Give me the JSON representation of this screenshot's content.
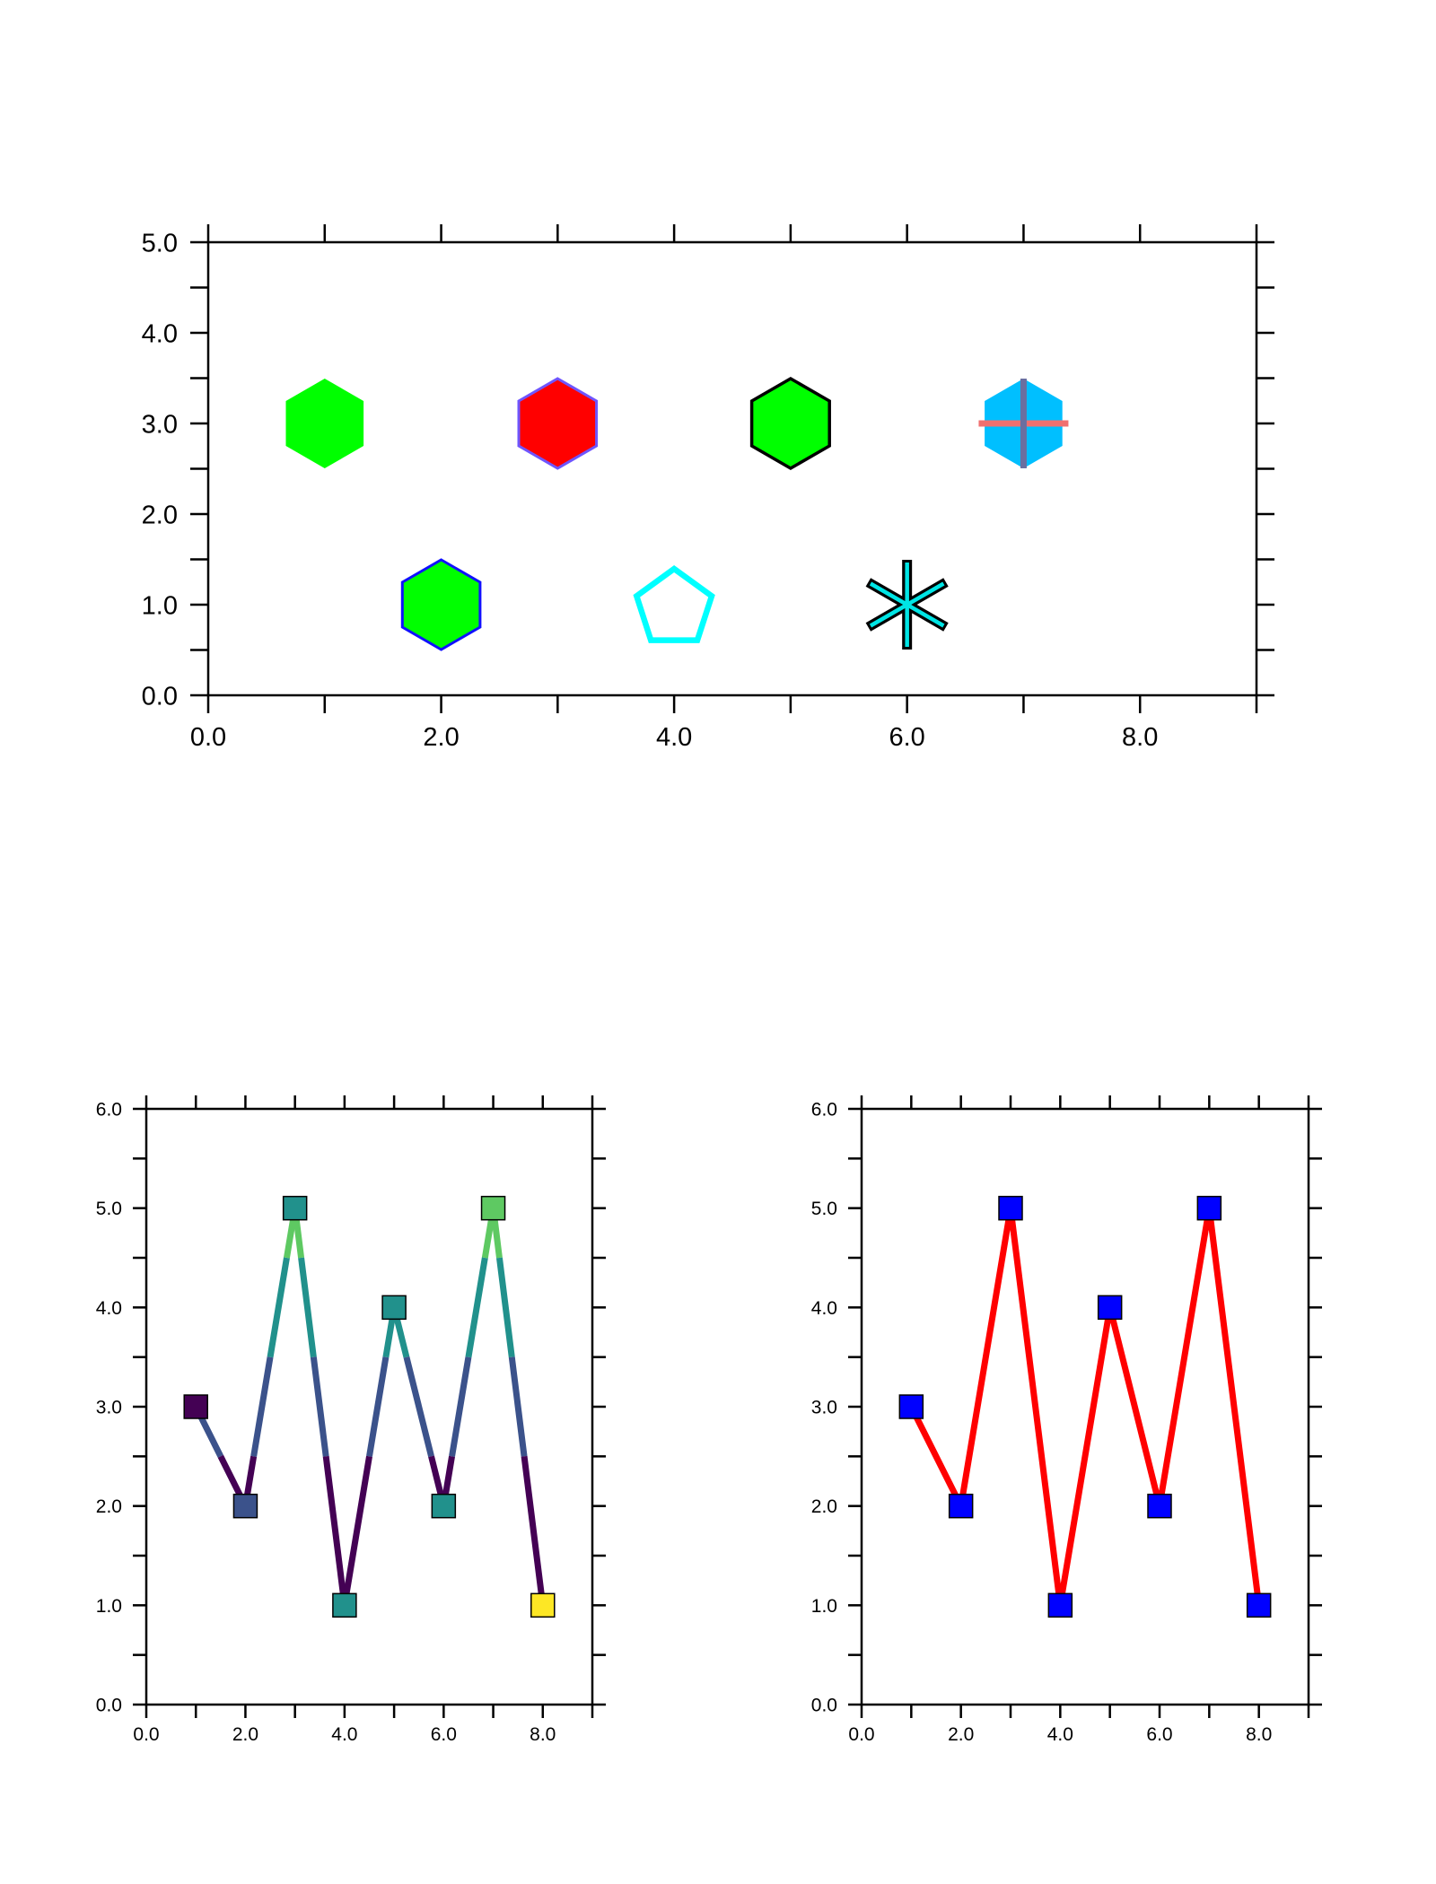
{
  "chart_data": [
    {
      "type": "scatter",
      "xlim": [
        0,
        9
      ],
      "ylim": [
        0,
        5
      ],
      "x_tick_labels": [
        "0.0",
        "2.0",
        "4.0",
        "6.0",
        "8.0"
      ],
      "y_tick_labels": [
        "0.0",
        "1.0",
        "2.0",
        "3.0",
        "4.0",
        "5.0"
      ],
      "markers": [
        {
          "x": 1,
          "y": 3,
          "shape": "hexagon",
          "fill": "#00ff00",
          "stroke": "none"
        },
        {
          "x": 3,
          "y": 3,
          "shape": "hexagon",
          "fill": "#ff0000",
          "stroke": "#6f55ff"
        },
        {
          "x": 5,
          "y": 3,
          "shape": "hexagon",
          "fill": "#00ff00",
          "stroke": "#000000"
        },
        {
          "x": 7,
          "y": 3,
          "shape": "hexagon-cross",
          "fill": "#00bfff",
          "stroke": "none",
          "cross_h": "#f07070",
          "cross_v": "#6a6fa0"
        },
        {
          "x": 2,
          "y": 1,
          "shape": "hexagon",
          "fill": "#00ff00",
          "stroke": "#1010ff"
        },
        {
          "x": 4,
          "y": 1,
          "shape": "pentagon",
          "fill": "none",
          "stroke": "#00ffff"
        },
        {
          "x": 6,
          "y": 1,
          "shape": "asterisk",
          "fill": "#00e5e5",
          "stroke": "#000000"
        }
      ]
    },
    {
      "type": "line",
      "xlim": [
        0,
        9
      ],
      "ylim": [
        0,
        6
      ],
      "x_tick_labels": [
        "0.0",
        "2.0",
        "4.0",
        "6.0",
        "8.0"
      ],
      "y_tick_labels": [
        "0.0",
        "1.0",
        "2.0",
        "3.0",
        "4.0",
        "5.0",
        "6.0"
      ],
      "x": [
        1,
        2,
        3,
        4,
        5,
        6,
        7,
        8
      ],
      "y": [
        3,
        2,
        5,
        1,
        4,
        2,
        5,
        1
      ],
      "line_colors_by_level": [
        {
          "max": 2.5,
          "color": "#440154"
        },
        {
          "max": 3.5,
          "color": "#3b528b"
        },
        {
          "max": 4.5,
          "color": "#21918c"
        },
        {
          "max": 5.5,
          "color": "#5ec962"
        },
        {
          "max": 99,
          "color": "#fde725"
        }
      ],
      "marker_colors": [
        "#440154",
        "#3b528b",
        "#21918c",
        "#21918c",
        "#21918c",
        "#21918c",
        "#5ec962",
        "#fde725"
      ]
    },
    {
      "type": "line",
      "xlim": [
        0,
        9
      ],
      "ylim": [
        0,
        6
      ],
      "x_tick_labels": [
        "0.0",
        "2.0",
        "4.0",
        "6.0",
        "8.0"
      ],
      "y_tick_labels": [
        "0.0",
        "1.0",
        "2.0",
        "3.0",
        "4.0",
        "5.0",
        "6.0"
      ],
      "x": [
        1,
        2,
        3,
        4,
        5,
        6,
        7,
        8
      ],
      "y": [
        3,
        2,
        5,
        1,
        4,
        2,
        5,
        1
      ],
      "line_color": "#ff0000",
      "marker_color": "#0000ff"
    }
  ]
}
